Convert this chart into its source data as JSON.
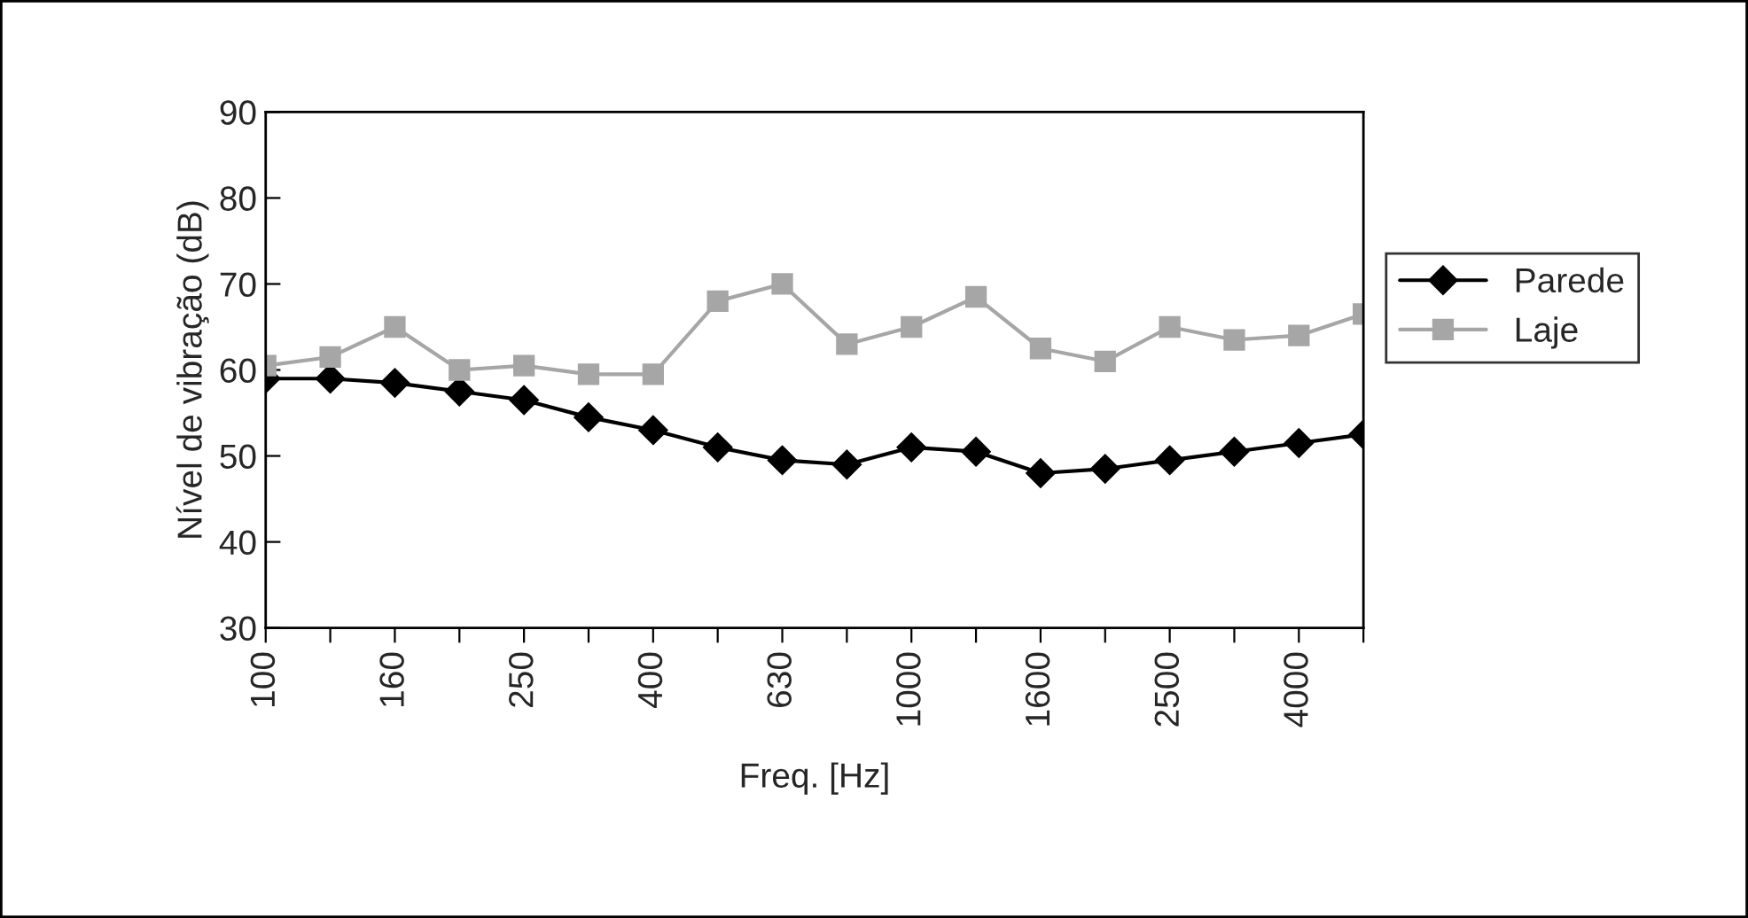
{
  "chart_data": {
    "type": "line",
    "xlabel": "Freq. [Hz]",
    "ylabel": "Nível de vibração (dB)",
    "categories": [
      "100",
      null,
      "160",
      null,
      "250",
      null,
      "400",
      null,
      "630",
      null,
      "1000",
      null,
      "1600",
      null,
      "2500",
      null,
      "4000",
      null
    ],
    "series": [
      {
        "name": "Parede",
        "color": "#000000",
        "marker": "diamond",
        "values": [
          59,
          59,
          58.5,
          57.5,
          56.5,
          54.5,
          53,
          51,
          49.5,
          49,
          51,
          50.5,
          48,
          48.5,
          49.5,
          50.5,
          51.5,
          52.5
        ]
      },
      {
        "name": "Laje",
        "color": "#a6a6a6",
        "marker": "square",
        "values": [
          60.5,
          61.5,
          65,
          60,
          60.5,
          59.5,
          59.5,
          68,
          70,
          63,
          65,
          68.5,
          62.5,
          61,
          65,
          63.5,
          64,
          66.5
        ]
      }
    ],
    "ylim": [
      30,
      90
    ],
    "yticks": [
      30,
      40,
      50,
      60,
      70,
      80,
      90
    ],
    "grid": false,
    "legend": "right"
  }
}
